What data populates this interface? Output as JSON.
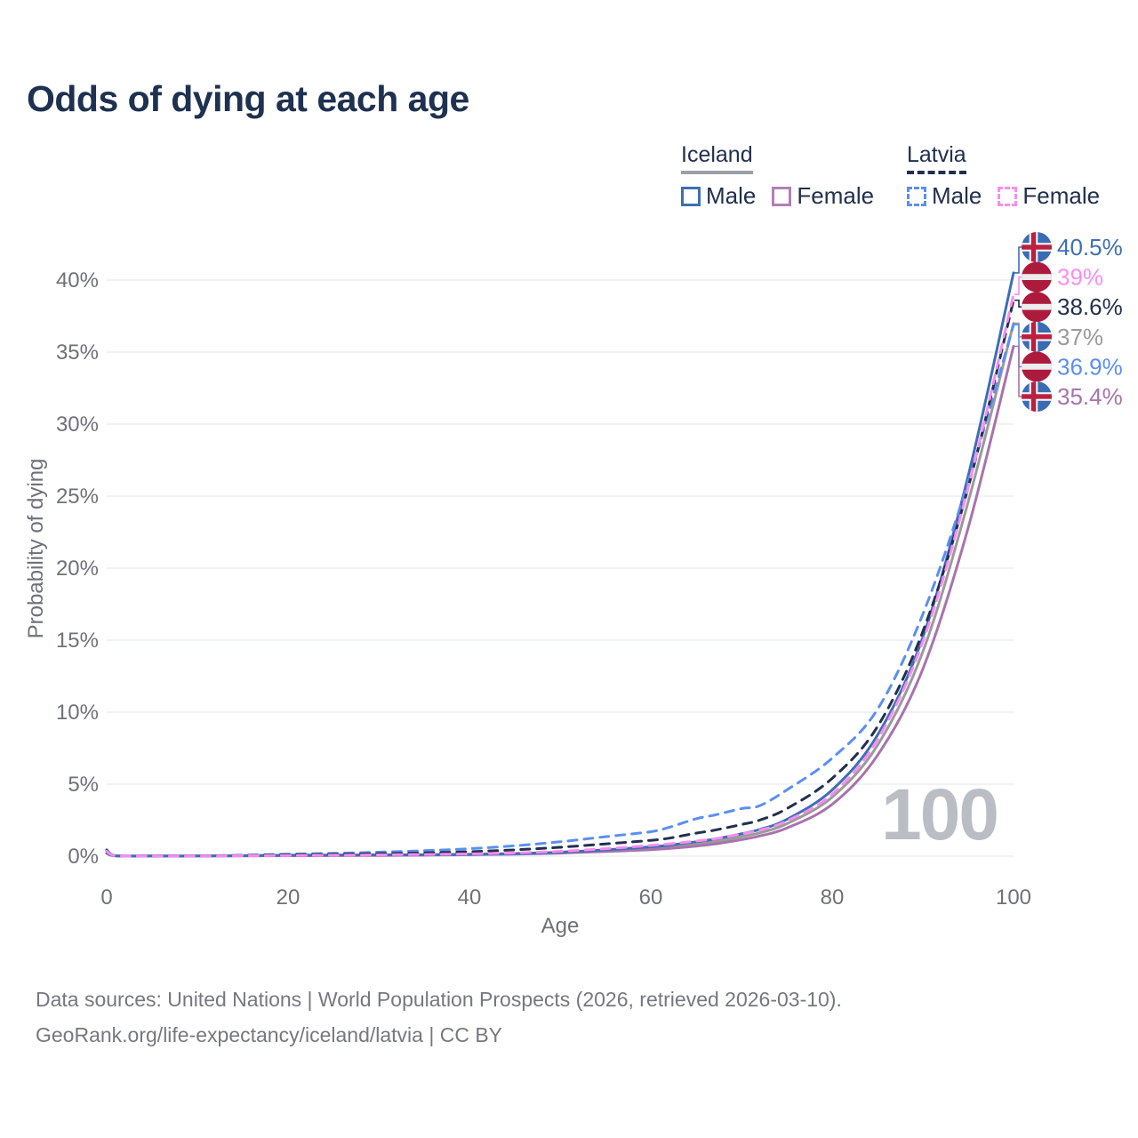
{
  "title": "Odds of dying at each age",
  "watermark": "100",
  "footer": {
    "line1": "Data sources: United Nations | World Population Prospects (2026, retrieved 2026-03-10).",
    "line2": "GeoRank.org/life-expectancy/iceland/latvia | CC BY"
  },
  "legend": {
    "groups": [
      {
        "name": "Iceland",
        "line_style": "solid",
        "underline_color": "#9aa0a6",
        "items": [
          {
            "label": "Male",
            "color": "#3d6fb5"
          },
          {
            "label": "Female",
            "color": "#b27fb5"
          }
        ]
      },
      {
        "name": "Latvia",
        "line_style": "dashed",
        "underline_color": "#222e4e",
        "items": [
          {
            "label": "Male",
            "color": "#5b8ff2"
          },
          {
            "label": "Female",
            "color": "#fb8cf0"
          }
        ]
      }
    ]
  },
  "chart_data": {
    "type": "line",
    "title": "Odds of dying at each age",
    "xlabel": "Age",
    "ylabel": "Probability of dying",
    "xlim": [
      0,
      100
    ],
    "ylim": [
      0,
      43
    ],
    "grid": "horizontal",
    "x_ticks": [
      0,
      20,
      40,
      60,
      80,
      100
    ],
    "y_ticks": [
      0,
      5,
      10,
      15,
      20,
      25,
      30,
      35,
      40
    ],
    "y_tick_labels": [
      "0%",
      "5%",
      "10%",
      "15%",
      "20%",
      "25%",
      "30%",
      "35%",
      "40%"
    ],
    "ages": [
      0,
      1,
      5,
      10,
      15,
      20,
      25,
      30,
      35,
      40,
      45,
      50,
      55,
      60,
      62,
      65,
      67,
      70,
      72,
      75,
      80,
      85,
      90,
      95,
      100
    ],
    "series": [
      {
        "id": "iceland-all",
        "name": "Iceland",
        "country": "Iceland",
        "sex": "Both",
        "color": "#9b9b9b",
        "line_style": "solid",
        "flag": "iceland",
        "end_label": "37%",
        "values": [
          0.21,
          0.02,
          0.01,
          0.01,
          0.03,
          0.05,
          0.06,
          0.07,
          0.09,
          0.12,
          0.16,
          0.25,
          0.38,
          0.55,
          0.64,
          0.85,
          1.0,
          1.35,
          1.62,
          2.25,
          4.1,
          7.7,
          14.2,
          24.6,
          37.0
        ]
      },
      {
        "id": "iceland-female",
        "name": "Iceland Female",
        "country": "Iceland",
        "sex": "Female",
        "color": "#a873ac",
        "line_style": "solid",
        "flag": "iceland",
        "end_label": "35.4%",
        "values": [
          0.2,
          0.02,
          0.01,
          0.01,
          0.02,
          0.03,
          0.04,
          0.05,
          0.07,
          0.1,
          0.14,
          0.21,
          0.32,
          0.45,
          0.53,
          0.7,
          0.84,
          1.15,
          1.4,
          1.95,
          3.6,
          7.0,
          13.0,
          22.8,
          35.4
        ]
      },
      {
        "id": "iceland-male",
        "name": "Iceland Male",
        "country": "Iceland",
        "sex": "Male",
        "color": "#3d6fb5",
        "line_style": "solid",
        "flag": "iceland",
        "end_label": "40.5%",
        "values": [
          0.23,
          0.03,
          0.01,
          0.01,
          0.04,
          0.07,
          0.08,
          0.09,
          0.1,
          0.13,
          0.18,
          0.28,
          0.44,
          0.65,
          0.76,
          1.0,
          1.18,
          1.55,
          1.85,
          2.55,
          4.6,
          8.4,
          15.2,
          26.4,
          40.5
        ]
      },
      {
        "id": "latvia-male",
        "name": "Latvia Male",
        "country": "Latvia",
        "sex": "Male",
        "color": "#5b8ff2",
        "line_style": "dashed",
        "flag": "latvia",
        "end_label": "36.9%",
        "values": [
          0.45,
          0.04,
          0.02,
          0.02,
          0.06,
          0.14,
          0.2,
          0.28,
          0.38,
          0.52,
          0.72,
          1.0,
          1.35,
          1.7,
          2.0,
          2.6,
          2.85,
          3.3,
          3.5,
          4.6,
          6.8,
          10.2,
          16.8,
          26.0,
          36.9
        ]
      },
      {
        "id": "latvia-all",
        "name": "Latvia",
        "country": "Latvia",
        "sex": "Both",
        "color": "#22304e",
        "line_style": "dashed",
        "flag": "latvia",
        "end_label": "38.6%",
        "values": [
          0.4,
          0.03,
          0.02,
          0.02,
          0.05,
          0.1,
          0.13,
          0.17,
          0.23,
          0.31,
          0.44,
          0.62,
          0.85,
          1.1,
          1.25,
          1.6,
          1.8,
          2.2,
          2.5,
          3.3,
          5.4,
          9.0,
          15.6,
          25.6,
          38.6
        ]
      },
      {
        "id": "latvia-female",
        "name": "Latvia Female",
        "country": "Latvia",
        "sex": "Female",
        "color": "#fb8cf0",
        "line_style": "dashed",
        "flag": "latvia",
        "end_label": "39%",
        "values": [
          0.35,
          0.03,
          0.01,
          0.01,
          0.03,
          0.05,
          0.07,
          0.09,
          0.12,
          0.16,
          0.23,
          0.34,
          0.52,
          0.75,
          0.85,
          1.05,
          1.2,
          1.55,
          1.8,
          2.45,
          4.3,
          8.1,
          14.9,
          25.6,
          39.0
        ]
      }
    ]
  }
}
